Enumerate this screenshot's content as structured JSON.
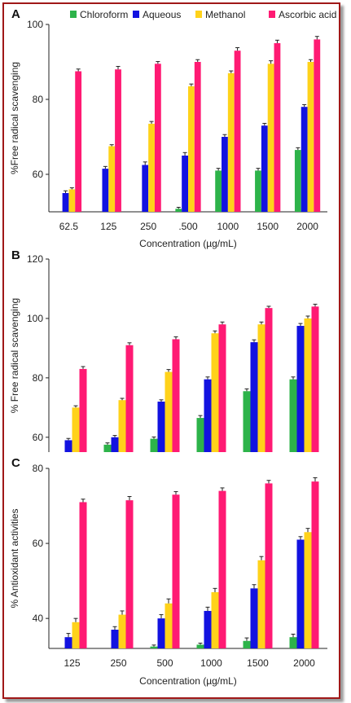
{
  "chart_data": [
    {
      "type": "bar",
      "panel": "A",
      "categories": [
        "62.5",
        "125",
        "250",
        ".500",
        "1000",
        "1500",
        "2000"
      ],
      "series": [
        {
          "name": "Chloroform",
          "values": [
            null,
            null,
            null,
            50.8,
            61,
            61,
            66.5
          ]
        },
        {
          "name": "Aqueous",
          "values": [
            55,
            61.5,
            62.5,
            65,
            70,
            73,
            78
          ]
        },
        {
          "name": "Methanol",
          "values": [
            56,
            67.5,
            73.5,
            83.5,
            87,
            89.5,
            90
          ]
        },
        {
          "name": "Ascorbic acid",
          "values": [
            87.5,
            88,
            89.5,
            90,
            93,
            95,
            96
          ]
        }
      ],
      "errors": [
        [
          null,
          null,
          null,
          0.4,
          0.6,
          0.6,
          0.6
        ],
        [
          0.6,
          0.6,
          0.8,
          0.8,
          0.6,
          0.6,
          0.6
        ],
        [
          0.4,
          0.4,
          0.6,
          0.6,
          0.6,
          0.8,
          0.6
        ],
        [
          0.6,
          0.8,
          0.6,
          0.6,
          0.8,
          0.8,
          0.8
        ]
      ],
      "xlabel": "Concentration (µg/mL)",
      "ylabel": "%Free radical scavenging",
      "ylim": [
        50,
        100
      ],
      "yticks": [
        60,
        80,
        100
      ],
      "ytick_labels": [
        "60",
        "80",
        "100"
      ],
      "legend": "top"
    },
    {
      "type": "bar",
      "panel": "B",
      "categories": [
        "125",
        "250",
        "500",
        "1000",
        "1500",
        "2000"
      ],
      "series": [
        {
          "name": "Chloroform",
          "values": [
            null,
            57.5,
            59.5,
            66.5,
            75.5,
            79.5
          ]
        },
        {
          "name": "Aqueous",
          "values": [
            59,
            60,
            72,
            79.5,
            92,
            97.5
          ]
        },
        {
          "name": "Methanol",
          "values": [
            70,
            72.5,
            82,
            95,
            98,
            100
          ]
        },
        {
          "name": "Ascorbic acid",
          "values": [
            83,
            91,
            93,
            98,
            103.5,
            104
          ]
        }
      ],
      "errors": [
        [
          null,
          0.6,
          0.6,
          0.8,
          0.8,
          0.8
        ],
        [
          0.6,
          0.6,
          0.6,
          0.8,
          0.8,
          0.8
        ],
        [
          0.6,
          0.6,
          0.8,
          0.8,
          0.8,
          0.8
        ],
        [
          0.8,
          0.8,
          0.8,
          0.8,
          0.6,
          0.8
        ]
      ],
      "xlabel": "",
      "ylabel": "% Free radical scavenging",
      "ylim": [
        55,
        120
      ],
      "yticks": [
        60,
        80,
        100,
        120
      ],
      "ytick_labels": [
        "60",
        "80",
        "100",
        "120"
      ]
    },
    {
      "type": "bar",
      "panel": "C",
      "categories": [
        "125",
        "250",
        "500",
        "1000",
        "1500",
        "2000"
      ],
      "series": [
        {
          "name": "Chloroform",
          "values": [
            null,
            null,
            32.5,
            33,
            34,
            35
          ]
        },
        {
          "name": "Aqueous",
          "values": [
            35,
            37,
            40,
            42,
            48,
            61
          ]
        },
        {
          "name": "Methanol",
          "values": [
            39,
            41,
            44,
            47,
            55.5,
            63
          ]
        },
        {
          "name": "Ascorbic acid",
          "values": [
            71,
            71.5,
            73,
            74,
            76,
            76.5
          ]
        }
      ],
      "errors": [
        [
          null,
          null,
          0.4,
          0.4,
          0.8,
          0.8
        ],
        [
          1,
          0.8,
          1,
          1,
          1,
          0.8
        ],
        [
          1,
          1,
          1.2,
          1,
          1,
          1
        ],
        [
          0.8,
          1,
          0.8,
          0.8,
          0.8,
          1
        ]
      ],
      "xlabel": "Concentration (µg/mL)",
      "ylabel": "% Antioxidant activities",
      "ylim": [
        32,
        80
      ],
      "yticks": [
        40,
        60,
        80
      ],
      "ytick_labels": [
        "40",
        "60",
        "80"
      ]
    }
  ],
  "colors": {
    "Chloroform": "#2db34a",
    "Aqueous": "#1212e0",
    "Methanol": "#ffd21a",
    "Ascorbic acid": "#ff1a73",
    "frame": "#a01818"
  }
}
